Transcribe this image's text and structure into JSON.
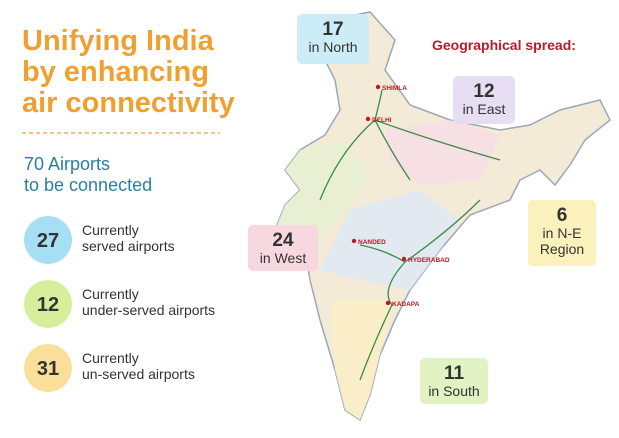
{
  "title_lines": [
    "Unifying India",
    "by enhancing",
    "air connectivity"
  ],
  "headline": [
    "70 Airports",
    "to be connected"
  ],
  "stats": [
    {
      "value": 27,
      "lines": [
        "Currently",
        "served airports"
      ]
    },
    {
      "value": 12,
      "lines": [
        "Currently",
        "under-served airports"
      ]
    },
    {
      "value": 31,
      "lines": [
        "Currently",
        "un-served airports"
      ]
    }
  ],
  "spread": {
    "title": "Geographical spread:",
    "regions": [
      {
        "value": 17,
        "lines": [
          "in North"
        ]
      },
      {
        "value": 12,
        "lines": [
          "in East"
        ]
      },
      {
        "value": 6,
        "lines": [
          "in N-E",
          "Region"
        ]
      },
      {
        "value": 24,
        "lines": [
          "in West"
        ]
      },
      {
        "value": 11,
        "lines": [
          "in South"
        ]
      }
    ]
  },
  "map_labels": [
    "SHIMLA",
    "DELHI",
    "NANDED",
    "HYDERABAD",
    "KADAPA"
  ]
}
